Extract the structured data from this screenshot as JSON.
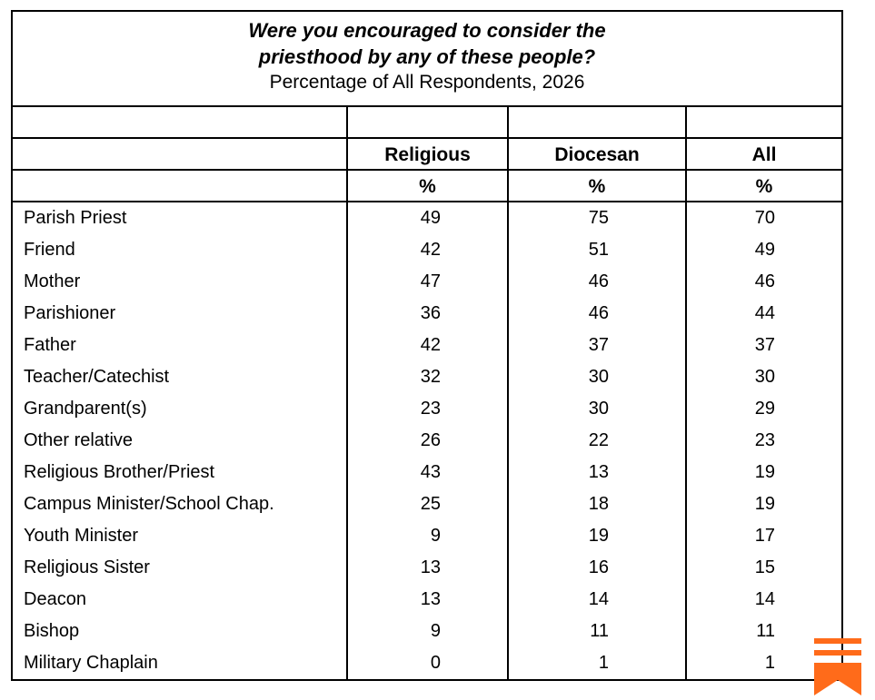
{
  "title": {
    "question_line1": "Were you encouraged to consider the",
    "question_line2": "priesthood by any of these people?",
    "subtitle": "Percentage of All Respondents, 2026"
  },
  "columns": [
    "Religious",
    "Diocesan",
    "All"
  ],
  "units": [
    "%",
    "%",
    "%"
  ],
  "rows": [
    {
      "label": "Parish Priest",
      "values": [
        "49",
        "75",
        "70"
      ]
    },
    {
      "label": "Friend",
      "values": [
        "42",
        "51",
        "49"
      ]
    },
    {
      "label": "Mother",
      "values": [
        "47",
        "46",
        "46"
      ]
    },
    {
      "label": "Parishioner",
      "values": [
        "36",
        "46",
        "44"
      ]
    },
    {
      "label": "Father",
      "values": [
        "42",
        "37",
        "37"
      ]
    },
    {
      "label": "Teacher/Catechist",
      "values": [
        "32",
        "30",
        "30"
      ]
    },
    {
      "label": "Grandparent(s)",
      "values": [
        "23",
        "30",
        "29"
      ]
    },
    {
      "label": "Other relative",
      "values": [
        "26",
        "22",
        "23"
      ]
    },
    {
      "label": "Religious Brother/Priest",
      "values": [
        "43",
        "13",
        "19"
      ]
    },
    {
      "label": "Campus Minister/School Chap.",
      "values": [
        "25",
        "18",
        "19"
      ]
    },
    {
      "label": "Youth Minister",
      "values": [
        "9",
        "19",
        "17"
      ]
    },
    {
      "label": "Religious Sister",
      "values": [
        "13",
        "16",
        "15"
      ]
    },
    {
      "label": "Deacon",
      "values": [
        "13",
        "14",
        "14"
      ]
    },
    {
      "label": "Bishop",
      "values": [
        "9",
        "11",
        "11"
      ]
    },
    {
      "label": "Military Chaplain",
      "values": [
        "0",
        "1",
        "1"
      ]
    }
  ],
  "logo": {
    "icon": "bookmark-logo-icon",
    "color": "#FF6B1A"
  }
}
